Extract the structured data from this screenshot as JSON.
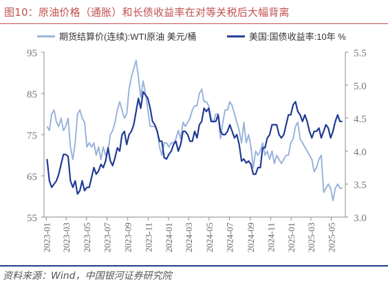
{
  "figure": {
    "title": "图10：原油价格（通胀）和长债收益率在对等关税后大幅背离",
    "source_note": "资料来源：Wind，中国银河证券研究院",
    "colors": {
      "title": "#c0504d",
      "oil": "#98b3db",
      "yield": "#1f3a93",
      "rule": "#1f3c88"
    }
  },
  "chart_data": {
    "type": "line",
    "title": "图10：原油价格（通胀）和长债收益率在对等关税后大幅背离",
    "legend_position": "top",
    "grid": false,
    "x_ticks": [
      "2023-01",
      "2023-03",
      "2023-05",
      "2023-07",
      "2023-09",
      "2023-11",
      "2024-01",
      "2024-03",
      "2024-05",
      "2024-07",
      "2024-09",
      "2024-11",
      "2025-01",
      "2025-03",
      "2025-05"
    ],
    "left_axis": {
      "ticks": [
        55,
        65,
        75,
        85,
        95
      ],
      "ylim": [
        55,
        95
      ]
    },
    "right_axis": {
      "ticks": [
        "3.0",
        "3.5",
        "4.0",
        "4.5",
        "5.0",
        "5.5"
      ],
      "ylim": [
        3.0,
        5.5
      ]
    },
    "series": [
      {
        "name": "期货结算价(连续):WTI原油 美元/桶",
        "axis": "left",
        "x": [
          "2023-01-03",
          "2023-01-10",
          "2023-01-17",
          "2023-01-24",
          "2023-01-31",
          "2023-02-07",
          "2023-02-14",
          "2023-02-21",
          "2023-02-28",
          "2023-03-07",
          "2023-03-14",
          "2023-03-21",
          "2023-03-28",
          "2023-04-04",
          "2023-04-11",
          "2023-04-18",
          "2023-04-25",
          "2023-05-02",
          "2023-05-09",
          "2023-05-16",
          "2023-05-23",
          "2023-05-30",
          "2023-06-06",
          "2023-06-13",
          "2023-06-20",
          "2023-06-27",
          "2023-07-04",
          "2023-07-11",
          "2023-07-18",
          "2023-07-25",
          "2023-08-01",
          "2023-08-08",
          "2023-08-15",
          "2023-08-22",
          "2023-08-29",
          "2023-09-05",
          "2023-09-12",
          "2023-09-19",
          "2023-09-26",
          "2023-10-03",
          "2023-10-10",
          "2023-10-17",
          "2023-10-24",
          "2023-10-31",
          "2023-11-07",
          "2023-11-14",
          "2023-11-21",
          "2023-11-28",
          "2023-12-05",
          "2023-12-12",
          "2023-12-19",
          "2023-12-26",
          "2024-01-02",
          "2024-01-09",
          "2024-01-16",
          "2024-01-23",
          "2024-01-30",
          "2024-02-06",
          "2024-02-13",
          "2024-02-20",
          "2024-02-27",
          "2024-03-05",
          "2024-03-12",
          "2024-03-19",
          "2024-03-26",
          "2024-04-02",
          "2024-04-09",
          "2024-04-16",
          "2024-04-23",
          "2024-04-30",
          "2024-05-07",
          "2024-05-14",
          "2024-05-21",
          "2024-05-28",
          "2024-06-04",
          "2024-06-11",
          "2024-06-18",
          "2024-06-25",
          "2024-07-02",
          "2024-07-09",
          "2024-07-16",
          "2024-07-23",
          "2024-07-30",
          "2024-08-06",
          "2024-08-13",
          "2024-08-20",
          "2024-08-27",
          "2024-09-03",
          "2024-09-10",
          "2024-09-17",
          "2024-09-24",
          "2024-10-01",
          "2024-10-08",
          "2024-10-15",
          "2024-10-22",
          "2024-10-29",
          "2024-11-05",
          "2024-11-12",
          "2024-11-19",
          "2024-11-26",
          "2024-12-03",
          "2024-12-10",
          "2024-12-17",
          "2024-12-24",
          "2024-12-31",
          "2025-01-07",
          "2025-01-14",
          "2025-01-21",
          "2025-01-28",
          "2025-02-04",
          "2025-02-11",
          "2025-02-18",
          "2025-02-25",
          "2025-03-04",
          "2025-03-11",
          "2025-03-18",
          "2025-03-25",
          "2025-04-01",
          "2025-04-08",
          "2025-04-15",
          "2025-04-22",
          "2025-04-29",
          "2025-05-06",
          "2025-05-13",
          "2025-05-20",
          "2025-05-27",
          "2025-06-03"
        ],
        "values": [
          77,
          76,
          80,
          81,
          78,
          77,
          79,
          76,
          77,
          79,
          72,
          69,
          73,
          80,
          81,
          79,
          78,
          72,
          73,
          72,
          73,
          70,
          72,
          69,
          72,
          70,
          71,
          75,
          76,
          78,
          81,
          83,
          81,
          79,
          80,
          86,
          89,
          91,
          93,
          89,
          84,
          88,
          85,
          81,
          77,
          77,
          77,
          76,
          72,
          70,
          73,
          73,
          72,
          73,
          73,
          74,
          76,
          74,
          78,
          77,
          78,
          79,
          81,
          82,
          82,
          85,
          86,
          83,
          83,
          82,
          79,
          78,
          80,
          80,
          74,
          78,
          81,
          81,
          83,
          82,
          80,
          78,
          76,
          73,
          78,
          73,
          75,
          72,
          67,
          71,
          70,
          71,
          73,
          70,
          71,
          69,
          71,
          68,
          70,
          69,
          68,
          69,
          70,
          70,
          73,
          74,
          77,
          78,
          74,
          73,
          72,
          71,
          70,
          69,
          66,
          67,
          69,
          70,
          61,
          62,
          63,
          62,
          59,
          62,
          63,
          62,
          62
        ]
      },
      {
        "name": "美国:国债收益率:10年 %",
        "axis": "right",
        "x": [
          "2023-01-03",
          "2023-01-10",
          "2023-01-17",
          "2023-01-24",
          "2023-01-31",
          "2023-02-07",
          "2023-02-14",
          "2023-02-21",
          "2023-02-28",
          "2023-03-07",
          "2023-03-14",
          "2023-03-21",
          "2023-03-28",
          "2023-04-04",
          "2023-04-11",
          "2023-04-18",
          "2023-04-25",
          "2023-05-02",
          "2023-05-09",
          "2023-05-16",
          "2023-05-23",
          "2023-05-30",
          "2023-06-06",
          "2023-06-13",
          "2023-06-20",
          "2023-06-27",
          "2023-07-04",
          "2023-07-11",
          "2023-07-18",
          "2023-07-25",
          "2023-08-01",
          "2023-08-08",
          "2023-08-15",
          "2023-08-22",
          "2023-08-29",
          "2023-09-05",
          "2023-09-12",
          "2023-09-19",
          "2023-09-26",
          "2023-10-03",
          "2023-10-10",
          "2023-10-17",
          "2023-10-24",
          "2023-10-31",
          "2023-11-07",
          "2023-11-14",
          "2023-11-21",
          "2023-11-28",
          "2023-12-05",
          "2023-12-12",
          "2023-12-19",
          "2023-12-26",
          "2024-01-02",
          "2024-01-09",
          "2024-01-16",
          "2024-01-23",
          "2024-01-30",
          "2024-02-06",
          "2024-02-13",
          "2024-02-20",
          "2024-02-27",
          "2024-03-05",
          "2024-03-12",
          "2024-03-19",
          "2024-03-26",
          "2024-04-02",
          "2024-04-09",
          "2024-04-16",
          "2024-04-23",
          "2024-04-30",
          "2024-05-07",
          "2024-05-14",
          "2024-05-21",
          "2024-05-28",
          "2024-06-04",
          "2024-06-11",
          "2024-06-18",
          "2024-06-25",
          "2024-07-02",
          "2024-07-09",
          "2024-07-16",
          "2024-07-23",
          "2024-07-30",
          "2024-08-06",
          "2024-08-13",
          "2024-08-20",
          "2024-08-27",
          "2024-09-03",
          "2024-09-10",
          "2024-09-17",
          "2024-09-24",
          "2024-10-01",
          "2024-10-08",
          "2024-10-15",
          "2024-10-22",
          "2024-10-29",
          "2024-11-05",
          "2024-11-12",
          "2024-11-19",
          "2024-11-26",
          "2024-12-03",
          "2024-12-10",
          "2024-12-17",
          "2024-12-24",
          "2024-12-31",
          "2025-01-07",
          "2025-01-14",
          "2025-01-21",
          "2025-01-28",
          "2025-02-04",
          "2025-02-11",
          "2025-02-18",
          "2025-02-25",
          "2025-03-04",
          "2025-03-11",
          "2025-03-18",
          "2025-03-25",
          "2025-04-01",
          "2025-04-08",
          "2025-04-15",
          "2025-04-22",
          "2025-04-29",
          "2025-05-06",
          "2025-05-13",
          "2025-05-20",
          "2025-05-27",
          "2025-06-03"
        ],
        "values": [
          3.88,
          3.55,
          3.45,
          3.5,
          3.55,
          3.65,
          3.8,
          3.95,
          3.95,
          3.92,
          3.55,
          3.45,
          3.55,
          3.35,
          3.4,
          3.55,
          3.4,
          3.45,
          3.45,
          3.6,
          3.75,
          3.65,
          3.7,
          3.8,
          3.75,
          3.85,
          4.05,
          3.85,
          3.78,
          3.9,
          4.05,
          4.0,
          4.25,
          4.3,
          4.1,
          4.25,
          4.3,
          4.4,
          4.6,
          4.8,
          4.65,
          4.9,
          4.85,
          4.8,
          4.65,
          4.45,
          4.4,
          4.3,
          4.15,
          4.15,
          3.9,
          3.88,
          3.95,
          4.0,
          4.1,
          4.15,
          4.0,
          4.1,
          4.3,
          4.3,
          4.25,
          4.15,
          4.15,
          4.3,
          4.2,
          4.4,
          4.45,
          4.65,
          4.6,
          4.65,
          4.45,
          4.45,
          4.45,
          4.55,
          4.3,
          4.25,
          4.25,
          4.3,
          4.4,
          4.3,
          4.2,
          4.25,
          4.1,
          3.85,
          3.88,
          3.82,
          3.85,
          3.8,
          3.65,
          3.65,
          3.75,
          3.75,
          4.05,
          4.05,
          4.2,
          4.25,
          4.4,
          4.4,
          4.4,
          4.25,
          4.2,
          4.25,
          4.4,
          4.55,
          4.55,
          4.7,
          4.75,
          4.6,
          4.55,
          4.45,
          4.55,
          4.45,
          4.3,
          4.2,
          4.3,
          4.3,
          4.35,
          4.2,
          4.3,
          4.4,
          4.35,
          4.2,
          4.3,
          4.45,
          4.55,
          4.45,
          4.45
        ]
      }
    ]
  }
}
